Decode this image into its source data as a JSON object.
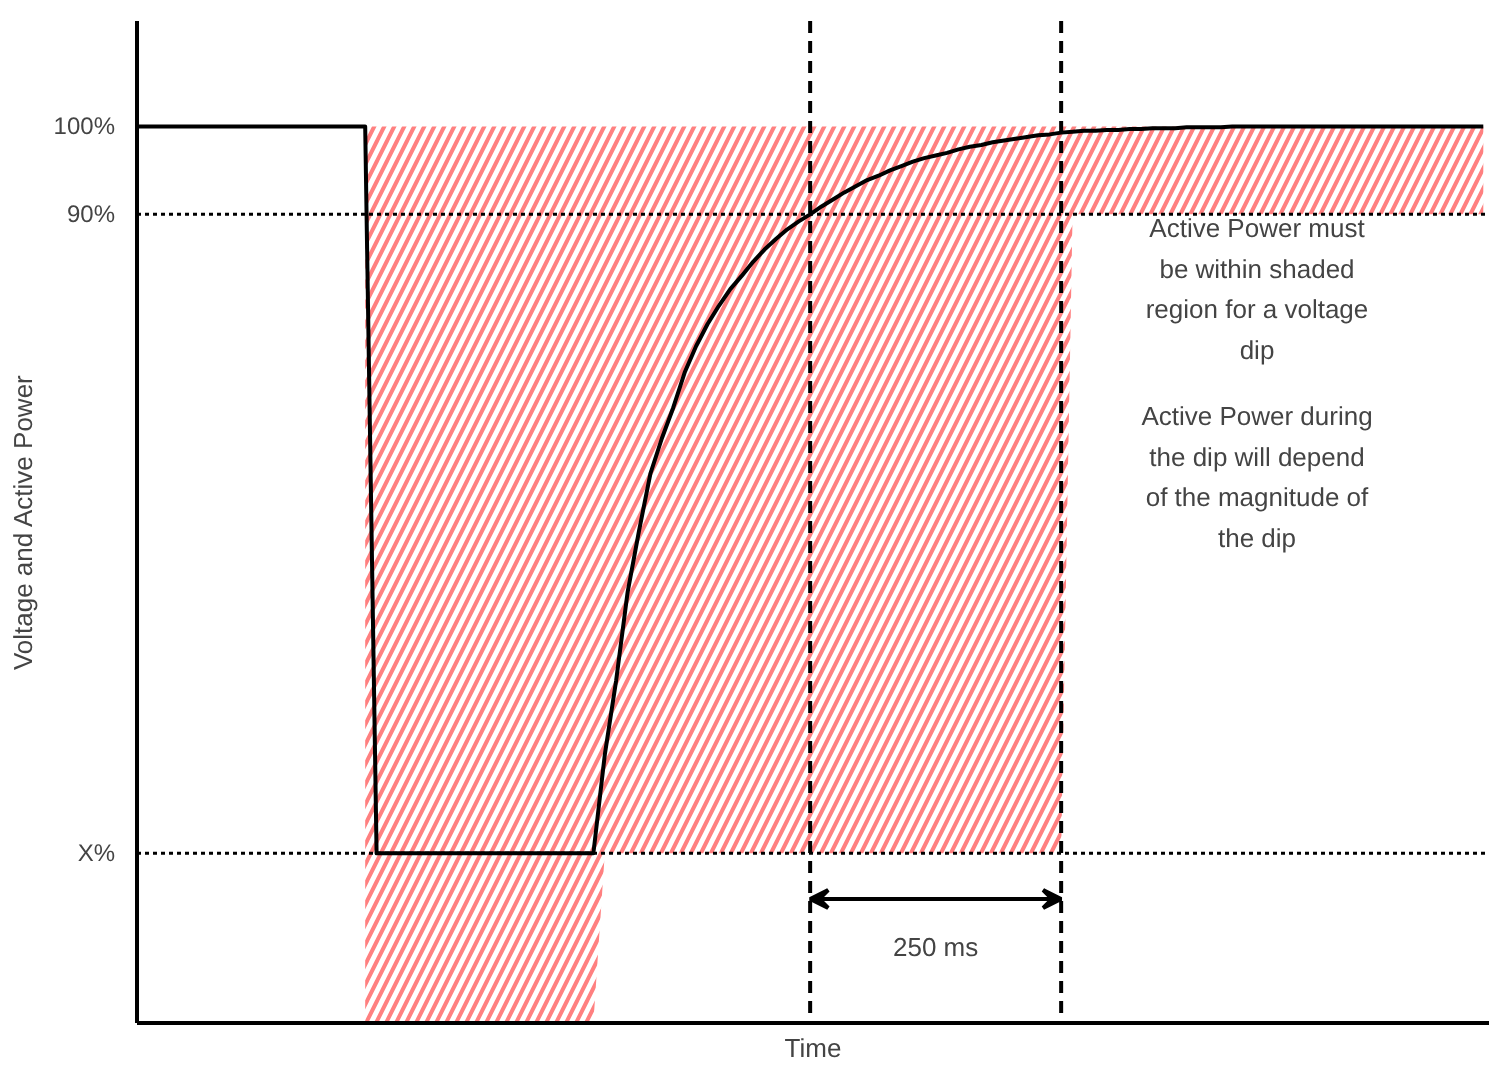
{
  "chart_data": {
    "type": "line",
    "xlabel": "Time",
    "ylabel": "Voltage and Active Power",
    "categories": [
      null,
      null,
      null,
      null,
      null,
      null,
      null,
      null,
      null,
      null,
      null,
      null,
      null,
      null,
      null,
      null,
      null,
      null,
      null,
      null,
      null,
      null,
      null,
      null,
      null,
      null,
      null,
      null,
      null,
      null,
      null,
      null,
      null,
      null,
      null,
      null,
      null,
      null,
      null,
      null,
      null,
      null,
      null,
      null,
      null,
      null,
      null,
      null,
      null,
      null,
      null,
      null,
      null,
      null,
      null,
      null,
      null,
      null,
      null,
      null,
      null,
      null,
      null,
      null,
      null,
      null,
      null,
      null,
      null,
      null,
      null,
      null,
      null,
      null,
      null,
      null,
      null,
      null,
      null,
      null,
      null,
      null,
      null,
      null,
      null,
      null,
      null,
      null,
      null,
      null,
      null,
      null,
      null,
      null,
      null,
      null,
      null,
      null,
      null,
      null,
      null,
      null,
      null,
      null,
      null,
      null,
      null,
      null,
      null,
      null,
      null,
      null,
      null,
      null,
      null,
      null,
      null,
      null,
      null
    ],
    "ylim": [
      -2,
      112
    ],
    "yticks": [
      {
        "value": 100,
        "label": "100%"
      },
      {
        "value": 90,
        "label": "90%"
      },
      {
        "value": 17.3,
        "label": "X%"
      }
    ],
    "tick_labels": "y",
    "grid": false,
    "series": [
      {
        "color": "#000000",
        "values": [
          100,
          100,
          100,
          100,
          100,
          100,
          100,
          100,
          100,
          100,
          100,
          100,
          100,
          100,
          100,
          100,
          100,
          100,
          100,
          100,
          100,
          17.3,
          17.3,
          17.3,
          17.3,
          17.3,
          17.3,
          17.3,
          17.3,
          17.3,
          17.3,
          17.3,
          17.3,
          17.3,
          17.3,
          17.3,
          17.3,
          17.3,
          17.3,
          17.3,
          17.3,
          28.5,
          37,
          47,
          54,
          60.5,
          64.5,
          68,
          72,
          75,
          77.5,
          79.6,
          81.5,
          83,
          84.6,
          86,
          87.2,
          88.3,
          89.2,
          90,
          90.9,
          91.7,
          92.5,
          93.2,
          93.9,
          94.4,
          95,
          95.5,
          96,
          96.4,
          96.7,
          97,
          97.4,
          97.7,
          97.9,
          98.2,
          98.4,
          98.6,
          98.8,
          99,
          99.1,
          99.3,
          99.4,
          99.5,
          99.5,
          99.6,
          99.6,
          99.7,
          99.7,
          99.8,
          99.8,
          99.8,
          99.9,
          99.9,
          99.9,
          99.9,
          100,
          100,
          100,
          100,
          100,
          100,
          100,
          100,
          100,
          100,
          100,
          100,
          100,
          100,
          100,
          100,
          100,
          100,
          100,
          100,
          100,
          100,
          100
        ],
        "upper": [
          null,
          null,
          null,
          null,
          null,
          null,
          null,
          null,
          null,
          null,
          null,
          null,
          null,
          null,
          null,
          null,
          null,
          null,
          null,
          null,
          100,
          100,
          100,
          100,
          100,
          100,
          100,
          100,
          100,
          100,
          100,
          100,
          100,
          100,
          100,
          100,
          100,
          100,
          100,
          100,
          100,
          100,
          100,
          100,
          100,
          100,
          100,
          100,
          100,
          100,
          100,
          100,
          100,
          100,
          100,
          100,
          100,
          100,
          100,
          100,
          100,
          100,
          100,
          100,
          100,
          100,
          100,
          100,
          100,
          100,
          100,
          100,
          100,
          100,
          100,
          100,
          100,
          100,
          100,
          100,
          100,
          100,
          100,
          100,
          100,
          100,
          100,
          100,
          100,
          100,
          100,
          100,
          100,
          100,
          100,
          100,
          100,
          100,
          100,
          100,
          100,
          100,
          100,
          100,
          100,
          100,
          100,
          100,
          100,
          100,
          100,
          100,
          100,
          100,
          100,
          100,
          100,
          100,
          100
        ],
        "lower": [
          null,
          null,
          null,
          null,
          null,
          null,
          null,
          null,
          null,
          null,
          null,
          null,
          null,
          null,
          null,
          null,
          null,
          null,
          null,
          null,
          -2,
          -2,
          -2,
          -2,
          -2,
          -2,
          -2,
          -2,
          -2,
          -2,
          -2,
          -2,
          -2,
          -2,
          -2,
          -2,
          -2,
          -2,
          -2,
          -2,
          -2,
          17.3,
          17.3,
          17.3,
          17.3,
          17.3,
          17.3,
          17.3,
          17.3,
          17.3,
          17.3,
          17.3,
          17.3,
          17.3,
          17.3,
          17.3,
          17.3,
          17.3,
          17.3,
          17.3,
          17.3,
          17.3,
          17.3,
          17.3,
          17.3,
          17.3,
          17.3,
          17.3,
          17.3,
          17.3,
          17.3,
          17.3,
          17.3,
          17.3,
          17.3,
          17.3,
          17.3,
          17.3,
          17.3,
          17.3,
          17.3,
          17.3,
          90,
          90,
          90,
          90,
          90,
          90,
          90,
          90,
          90,
          90,
          90,
          90,
          90,
          90,
          90,
          90,
          90,
          90,
          90,
          90,
          90,
          90,
          90,
          90,
          90,
          90,
          90,
          90,
          90,
          90,
          90,
          90,
          90,
          90,
          90,
          90,
          90
        ]
      }
    ],
    "ref_lines": [
      {
        "axis": "y",
        "value": 90,
        "line_style": "dotted",
        "color": "#000000"
      },
      {
        "axis": "y",
        "value": 17.3,
        "line_style": "dotted",
        "color": "#000000"
      }
    ],
    "annotations": [
      "250 ms",
      "Active Power must\nbe within shaded\nregion for a voltage\ndip",
      "Active Power during\nthe dip will depend\nof the magnitude of\nthe dip"
    ]
  }
}
